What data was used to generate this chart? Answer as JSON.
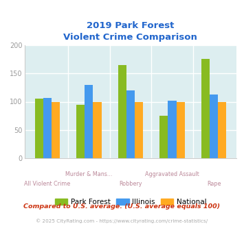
{
  "title_line1": "2019 Park Forest",
  "title_line2": "Violent Crime Comparison",
  "title_color": "#2266cc",
  "categories": [
    "All Violent Crime",
    "Murder & Mans...",
    "Robbery",
    "Aggravated Assault",
    "Rape"
  ],
  "cat_labels_row1": [
    "",
    "Murder & Mans...",
    "",
    "Aggravated Assault",
    ""
  ],
  "cat_labels_row2": [
    "All Violent Crime",
    "",
    "Robbery",
    "",
    "Rape"
  ],
  "park_forest": [
    105,
    94,
    165,
    75,
    176
  ],
  "illinois": [
    107,
    130,
    120,
    102,
    113
  ],
  "national": [
    100,
    100,
    100,
    100,
    100
  ],
  "bar_colors": {
    "park_forest": "#88bb22",
    "illinois": "#4499ee",
    "national": "#ffaa22"
  },
  "ylim": [
    0,
    200
  ],
  "yticks": [
    0,
    50,
    100,
    150,
    200
  ],
  "background_color": "#ddeef0",
  "grid_color": "#ffffff",
  "legend_labels": [
    "Park Forest",
    "Illinois",
    "National"
  ],
  "footnote1": "Compared to U.S. average. (U.S. average equals 100)",
  "footnote2": "© 2025 CityRating.com - https://www.cityrating.com/crime-statistics/",
  "footnote1_color": "#cc3311",
  "footnote2_color": "#aaaaaa",
  "xlabel_color": "#bb8899",
  "tick_color": "#999999"
}
